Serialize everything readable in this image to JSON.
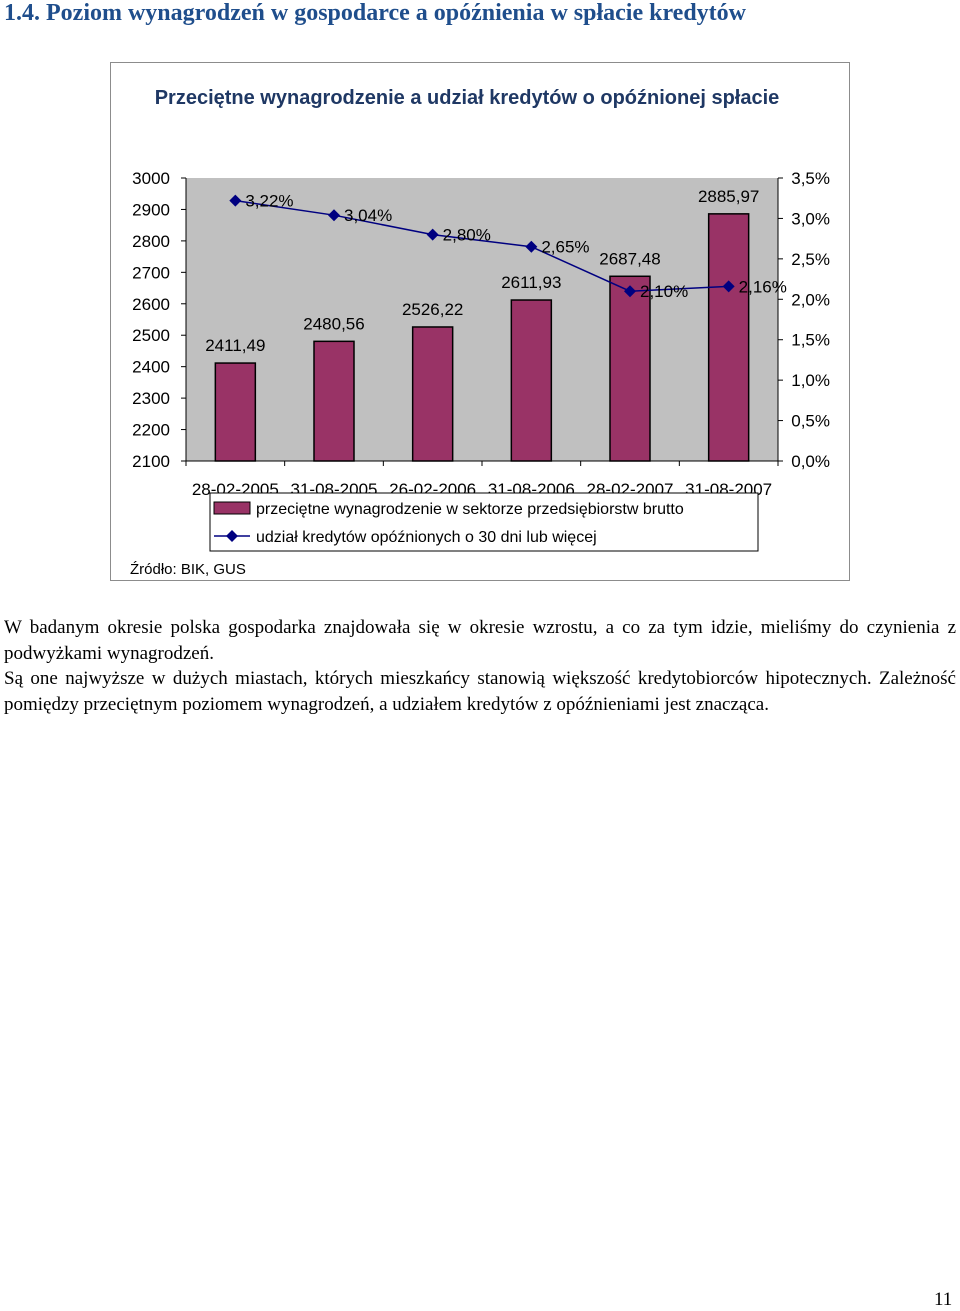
{
  "heading": "1.4. Poziom wynagrodzeń w gospodarce a opóźnienia w spłacie kredytów",
  "chart_data": {
    "type": "bar",
    "title": "Przeciętne wynagrodzenie a udział kredytów o opóźnionej spłacie",
    "categories": [
      "28-02-2005",
      "31-08-2005",
      "26-02-2006",
      "31-08-2006",
      "28-02-2007",
      "31-08-2007"
    ],
    "series": [
      {
        "name": "przeciętne wynagrodzenie w sektorze przedsiębiorstw brutto",
        "chart_type": "bar",
        "axis": "left",
        "color": "#993366",
        "values": [
          2411.49,
          2480.56,
          2526.22,
          2611.93,
          2687.48,
          2885.97
        ],
        "labels": [
          "2411,49",
          "2480,56",
          "2526,22",
          "2611,93",
          "2687,48",
          "2885,97"
        ]
      },
      {
        "name": "udział kredytów opóźnionych o 30 dni lub więcej",
        "chart_type": "line",
        "axis": "right",
        "color": "#000080",
        "values": [
          3.22,
          3.04,
          2.8,
          2.65,
          2.1,
          2.16
        ],
        "labels": [
          "3,22%",
          "3,04%",
          "2,80%",
          "2,65%",
          "2,10%",
          "2,16%"
        ]
      }
    ],
    "y_left": {
      "ylim": [
        2100,
        3000
      ],
      "ticks": [
        "2100",
        "2200",
        "2300",
        "2400",
        "2500",
        "2600",
        "2700",
        "2800",
        "2900",
        "3000"
      ]
    },
    "y_right": {
      "ylim": [
        0,
        3.5
      ],
      "ticks": [
        "0,0%",
        "0,5%",
        "1,0%",
        "1,5%",
        "2,0%",
        "2,5%",
        "3,0%",
        "3,5%"
      ]
    },
    "plot_background": "#c0c0c0",
    "grid": false,
    "legend_position": "bottom",
    "source": "Źródło: BIK, GUS"
  },
  "paragraphs": [
    "W badanym okresie polska gospodarka znajdowała się w okresie wzrostu, a co za tym idzie, mieliśmy do czynienia z podwyżkami wynagrodzeń.",
    "Są one najwyższe w dużych miastach, których mieszkańcy stanowią większość kredytobiorców hipotecznych. Zależność pomiędzy przeciętnym poziomem wynagrodzeń, a udziałem kredytów z opóźnieniami jest znacząca."
  ],
  "page_number": "11"
}
